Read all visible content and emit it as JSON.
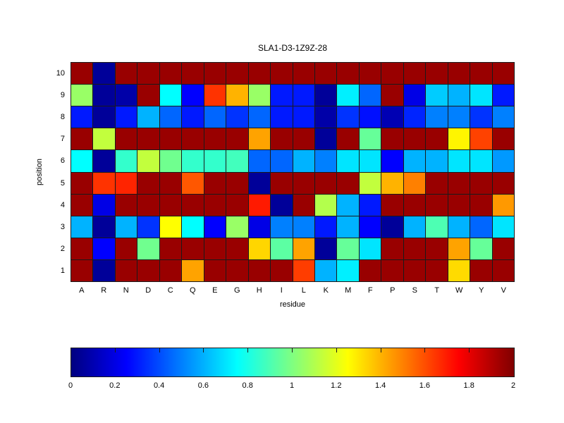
{
  "figure": {
    "background": "#ffffff"
  },
  "chart_data": {
    "type": "heatmap",
    "title": "SLA1-D3-1Z9Z-28",
    "xlabel": "residue",
    "ylabel": "position",
    "x_categories": [
      "A",
      "R",
      "N",
      "D",
      "C",
      "Q",
      "E",
      "G",
      "H",
      "I",
      "L",
      "K",
      "M",
      "F",
      "P",
      "S",
      "T",
      "W",
      "Y",
      "V"
    ],
    "y_categories_top_to_bottom": [
      "10",
      "9",
      "8",
      "7",
      "6",
      "5",
      "4",
      "3",
      "2",
      "1"
    ],
    "value_range": [
      0,
      2
    ],
    "colormap": "jet",
    "grid_line_color": "#1a1a1a",
    "values_rows_top_to_bottom": [
      [
        1.95,
        0.05,
        1.95,
        1.95,
        1.95,
        1.95,
        1.95,
        1.95,
        1.95,
        1.95,
        1.95,
        1.95,
        1.95,
        1.95,
        1.95,
        1.95,
        1.95,
        1.95,
        1.95,
        1.95
      ],
      [
        1.05,
        0.05,
        0.08,
        1.95,
        0.75,
        0.25,
        1.65,
        1.4,
        1.05,
        0.3,
        0.3,
        0.05,
        0.72,
        0.45,
        1.95,
        0.2,
        0.65,
        0.6,
        0.7,
        0.3
      ],
      [
        0.3,
        0.05,
        0.3,
        0.6,
        0.45,
        0.3,
        0.45,
        0.35,
        0.45,
        0.3,
        0.3,
        0.08,
        0.35,
        0.28,
        0.1,
        0.32,
        0.5,
        0.5,
        0.35,
        0.5
      ],
      [
        1.95,
        1.13,
        1.95,
        1.95,
        1.95,
        1.95,
        1.95,
        1.95,
        1.43,
        1.95,
        1.95,
        0.05,
        1.95,
        0.95,
        1.95,
        1.95,
        1.95,
        1.27,
        1.62,
        1.95
      ],
      [
        0.75,
        0.05,
        0.85,
        1.13,
        0.97,
        0.85,
        0.85,
        0.88,
        0.45,
        0.45,
        0.6,
        0.5,
        0.7,
        0.7,
        0.25,
        0.6,
        0.6,
        0.7,
        0.7,
        0.55
      ],
      [
        1.95,
        1.65,
        1.68,
        1.95,
        1.95,
        1.58,
        1.95,
        1.95,
        0.05,
        1.95,
        1.95,
        1.95,
        1.95,
        1.13,
        1.4,
        1.5,
        1.95,
        1.95,
        1.95,
        1.95
      ],
      [
        1.95,
        0.2,
        1.95,
        1.95,
        1.95,
        1.95,
        1.95,
        1.95,
        1.7,
        0.05,
        1.95,
        1.1,
        0.6,
        0.3,
        1.95,
        1.95,
        1.95,
        1.95,
        1.95,
        1.45
      ],
      [
        0.6,
        0.05,
        0.6,
        0.35,
        1.25,
        0.75,
        0.25,
        1.05,
        0.2,
        0.5,
        0.5,
        0.3,
        0.6,
        0.25,
        0.05,
        0.6,
        0.9,
        0.6,
        0.45,
        0.7
      ],
      [
        1.95,
        0.25,
        1.95,
        0.97,
        1.95,
        1.95,
        1.95,
        1.95,
        1.33,
        0.93,
        1.43,
        0.05,
        0.95,
        0.7,
        1.95,
        1.95,
        1.95,
        1.43,
        0.95,
        1.95
      ],
      [
        1.95,
        0.05,
        1.95,
        1.95,
        1.95,
        1.43,
        1.95,
        1.95,
        1.95,
        1.95,
        1.63,
        0.6,
        0.72,
        1.95,
        1.95,
        1.95,
        1.95,
        1.32,
        1.95,
        1.95
      ]
    ],
    "colorbar": {
      "orientation": "horizontal",
      "tick_values": [
        0,
        0.2,
        0.4,
        0.6,
        0.8,
        1,
        1.2,
        1.4,
        1.6,
        1.8,
        2
      ],
      "tick_labels": [
        "0",
        "0.2",
        "0.4",
        "0.6",
        "0.8",
        "1",
        "1.2",
        "1.4",
        "1.6",
        "1.8",
        "2"
      ]
    }
  }
}
